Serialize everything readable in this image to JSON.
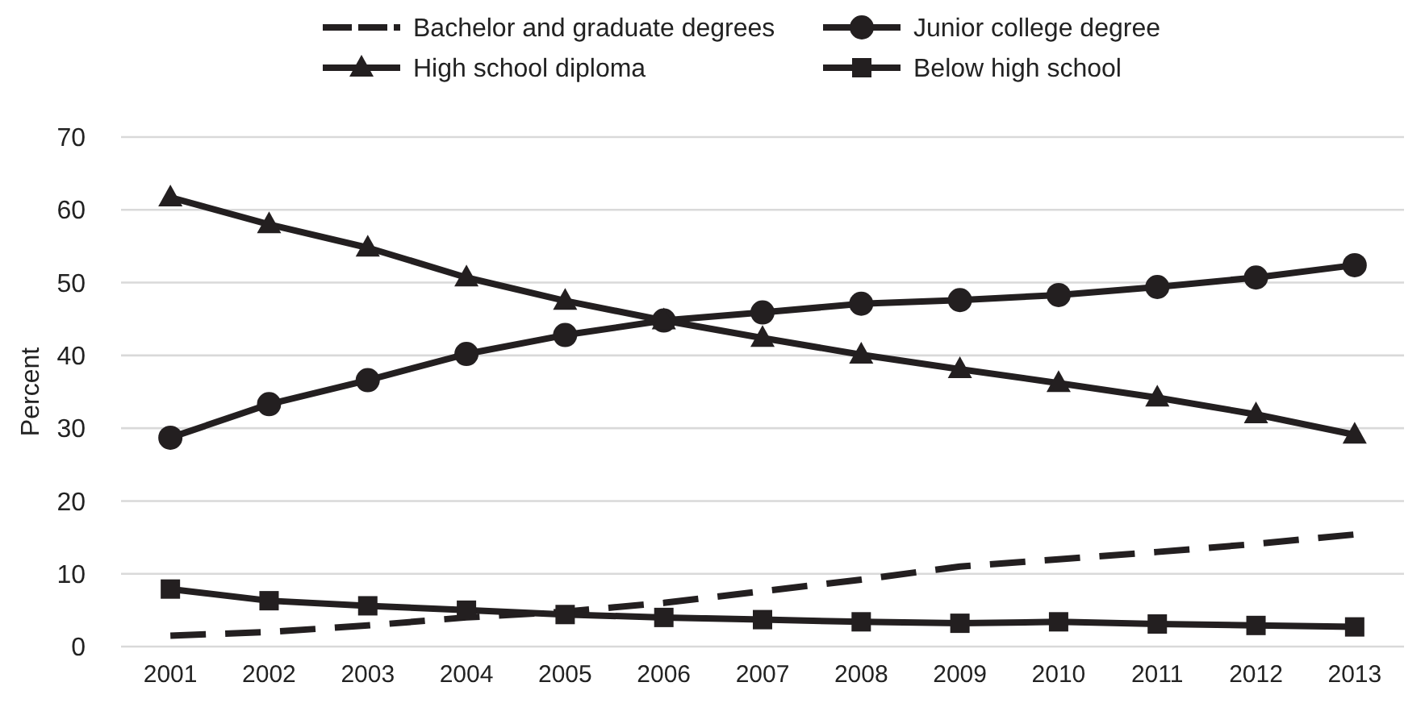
{
  "chart_data": {
    "type": "line",
    "ylabel": "Percent",
    "categories": [
      "2001",
      "2002",
      "2003",
      "2004",
      "2005",
      "2006",
      "2007",
      "2008",
      "2009",
      "2010",
      "2011",
      "2012",
      "2013"
    ],
    "ylim": [
      0,
      70
    ],
    "yticks": [
      0,
      10,
      20,
      30,
      40,
      50,
      60,
      70
    ],
    "grid": "y",
    "legend": "top",
    "series": [
      {
        "name": "Bachelor and graduate degrees",
        "color": "#231f20",
        "marker": "none",
        "line_style": "dashed",
        "values": [
          1.5,
          2.0,
          2.9,
          4.0,
          4.8,
          6.0,
          7.6,
          9.2,
          11.0,
          12.0,
          13.0,
          14.1,
          15.4
        ]
      },
      {
        "name": "Junior college degree",
        "color": "#231f20",
        "marker": "circle",
        "line_style": "solid",
        "values": [
          28.7,
          33.3,
          36.6,
          40.2,
          42.8,
          44.8,
          45.9,
          47.1,
          47.6,
          48.3,
          49.4,
          50.7,
          52.4
        ]
      },
      {
        "name": "High school diploma",
        "color": "#231f20",
        "marker": "triangle",
        "line_style": "solid",
        "values": [
          61.7,
          58.0,
          54.8,
          50.7,
          47.5,
          44.8,
          42.4,
          40.1,
          38.1,
          36.2,
          34.2,
          31.9,
          29.1
        ]
      },
      {
        "name": "Below high school",
        "color": "#231f20",
        "marker": "square",
        "line_style": "solid",
        "values": [
          7.9,
          6.3,
          5.6,
          5.0,
          4.4,
          4.0,
          3.7,
          3.4,
          3.2,
          3.4,
          3.1,
          2.9,
          2.7
        ]
      }
    ]
  }
}
